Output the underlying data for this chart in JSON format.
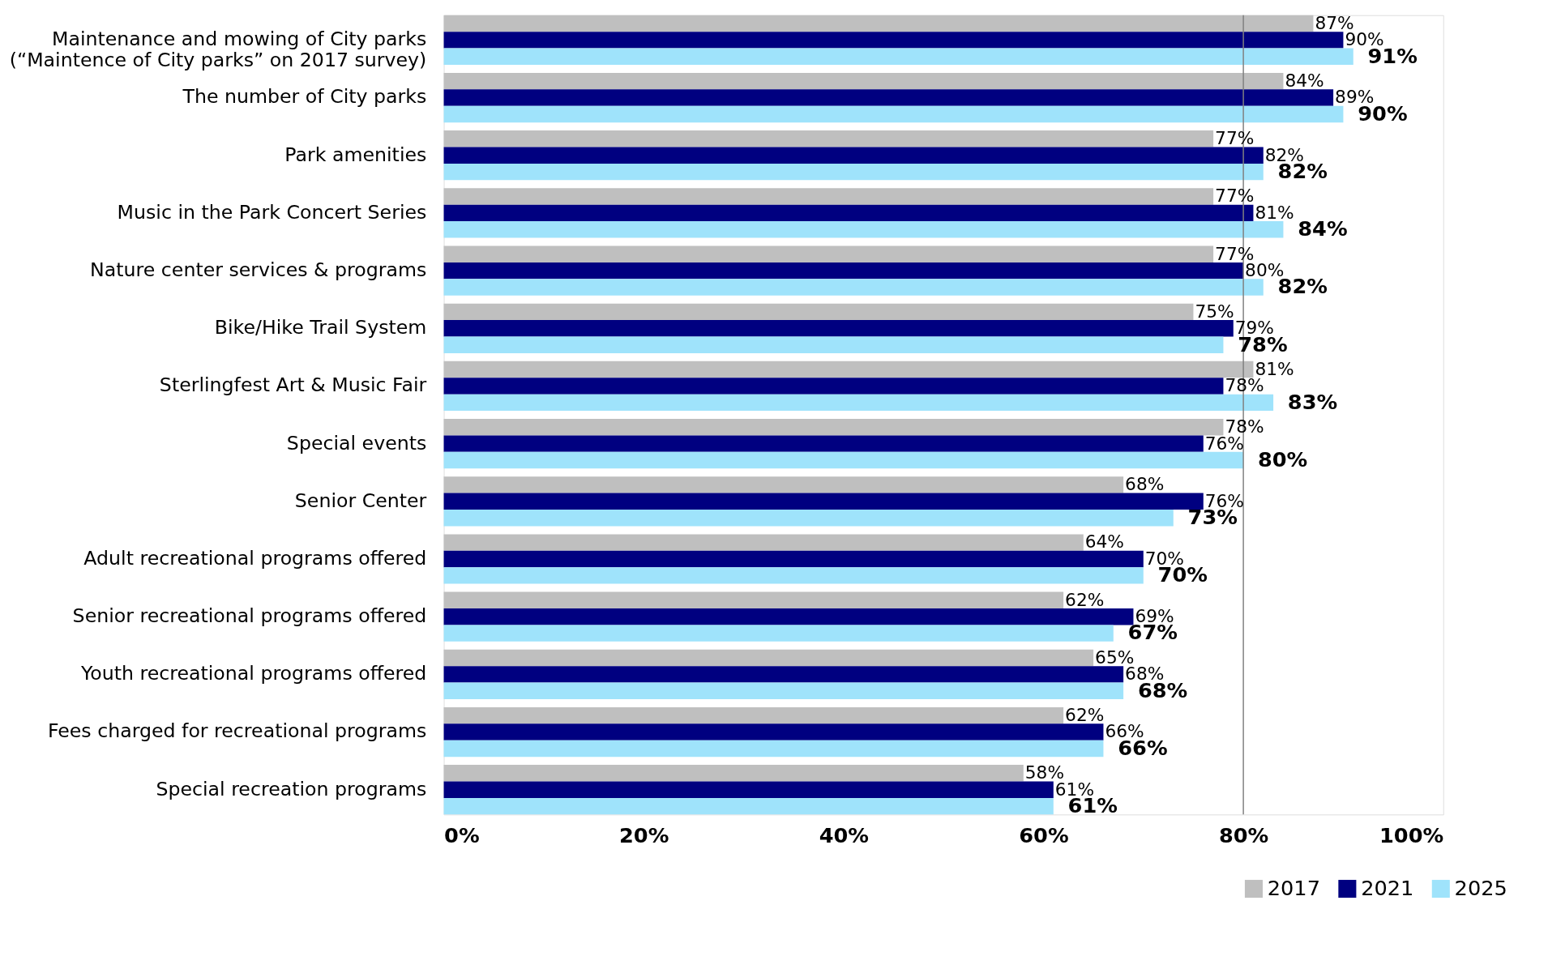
{
  "chart_data": {
    "type": "bar",
    "orientation": "horizontal",
    "categories": [
      "Maintenance and mowing of City parks\n(“Maintence of City parks” on 2017 survey)",
      "The number of City parks",
      "Park amenities",
      "Music in the Park Concert Series",
      "Nature center services & programs",
      "Bike/Hike Trail System",
      "Sterlingfest Art & Music Fair",
      "Special events",
      "Senior Center",
      "Adult recreational programs offered",
      "Senior recreational programs offered",
      "Youth recreational programs offered",
      "Fees charged for recreational programs",
      "Special recreation programs"
    ],
    "series": [
      {
        "name": "2017",
        "color": "#bfbfbf",
        "values": [
          87,
          84,
          77,
          77,
          77,
          75,
          81,
          78,
          68,
          64,
          62,
          65,
          62,
          58
        ],
        "value_labels": [
          "87%",
          "84%",
          "77%",
          "77%",
          "77%",
          "75%",
          "81%",
          "78%",
          "68%",
          "64%",
          "62%",
          "65%",
          "62%",
          "58%"
        ]
      },
      {
        "name": "2021",
        "color": "#000080",
        "values": [
          90,
          89,
          82,
          81,
          80,
          79,
          78,
          76,
          76,
          70,
          69,
          68,
          66,
          61
        ],
        "value_labels": [
          "90%",
          "89%",
          "82%",
          "81%",
          "80%",
          "79%",
          "78%",
          "76%",
          "76%",
          "70%",
          "69%",
          "68%",
          "66%",
          "61%"
        ]
      },
      {
        "name": "2025",
        "color": "#9fe3fb",
        "values": [
          91,
          90,
          82,
          84,
          82,
          78,
          83,
          80,
          73,
          70,
          67,
          68,
          66,
          61
        ],
        "value_labels": [
          "91%",
          "90%",
          "82%",
          "84%",
          "82%",
          "78%",
          "83%",
          "80%",
          "73%",
          "70%",
          "67%",
          "68%",
          "66%",
          "61%"
        ]
      }
    ],
    "xlim": [
      0,
      100
    ],
    "xticks": [
      {
        "value": 0,
        "label": "0%"
      },
      {
        "value": 20,
        "label": "20%"
      },
      {
        "value": 40,
        "label": "40%"
      },
      {
        "value": 60,
        "label": "60%"
      },
      {
        "value": 80,
        "label": "80%"
      },
      {
        "value": 100,
        "label": "100%"
      }
    ],
    "ref_lines": [
      {
        "axis": "x",
        "value": 80,
        "color": "#808080"
      }
    ],
    "legend": "bottom right",
    "grid": false
  }
}
